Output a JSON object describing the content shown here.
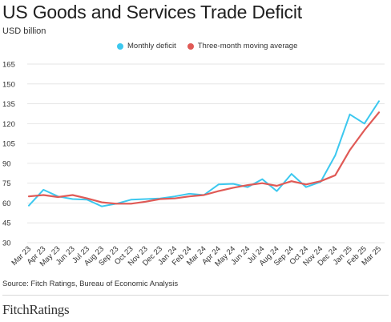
{
  "header": {
    "title": "US Goods and Services Trade Deficit",
    "subtitle": "USD billion"
  },
  "footer": {
    "source": "Source: Fitch Ratings, Bureau of Economic Analysis",
    "brand": "FitchRatings"
  },
  "colors": {
    "monthly": "#3cc8ef",
    "moving_average": "#e05a56",
    "grid": "#e6e6e6",
    "axis_text": "#333333"
  },
  "chart_data": {
    "type": "line",
    "categories": [
      "Mar 23",
      "Apr 23",
      "May 23",
      "Jun 23",
      "Jul 23",
      "Aug 23",
      "Sep 23",
      "Oct 23",
      "Nov 23",
      "Dec 23",
      "Jan 24",
      "Feb 24",
      "Mar 24",
      "Apr 24",
      "May 24",
      "Jun 24",
      "Jul 24",
      "Aug 24",
      "Sep 24",
      "Oct 24",
      "Nov 24",
      "Dec 24",
      "Jan 25",
      "Feb 25",
      "Mar 25"
    ],
    "series": [
      {
        "name": "Monthly deficit",
        "color": "#3cc8ef",
        "values": [
          58,
          70,
          65,
          63,
          62.5,
          57.5,
          59.5,
          62.5,
          63,
          63.5,
          65,
          67,
          66,
          74,
          74.5,
          72,
          78,
          69,
          82,
          72,
          76,
          96,
          127,
          120,
          137
        ]
      },
      {
        "name": "Three-month moving average",
        "color": "#e05a56",
        "values": [
          65,
          66,
          64.5,
          66,
          63.5,
          60.5,
          59.5,
          59.5,
          61,
          63,
          63.5,
          65,
          66,
          69,
          71.5,
          73.5,
          75,
          73,
          76.5,
          74,
          76.5,
          81,
          100,
          115,
          128.5
        ]
      }
    ],
    "yticks": [
      30,
      45,
      60,
      75,
      90,
      105,
      120,
      135,
      150,
      165
    ],
    "ylim": [
      30,
      165
    ],
    "xlabel": "",
    "ylabel": "",
    "grid": "horizontal",
    "legend_position": "top-center"
  }
}
